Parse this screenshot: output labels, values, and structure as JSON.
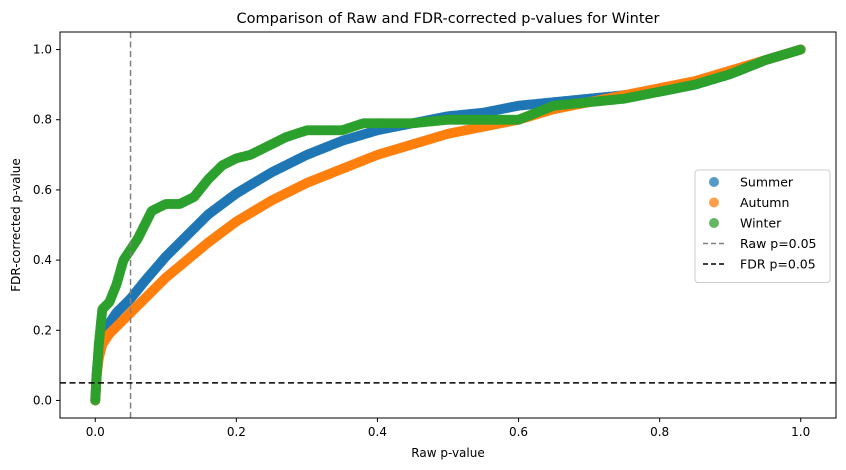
{
  "chart_data": {
    "type": "scatter",
    "title": "Comparison of Raw and FDR-corrected p-values for Winter",
    "xlabel": "Raw p-value",
    "ylabel": "FDR-corrected p-value",
    "xlim": [
      -0.05,
      1.05
    ],
    "ylim": [
      -0.05,
      1.05
    ],
    "xticks": [
      0.0,
      0.2,
      0.4,
      0.6,
      0.8,
      1.0
    ],
    "xtick_labels": [
      "0.0",
      "0.2",
      "0.4",
      "0.6",
      "0.8",
      "1.0"
    ],
    "yticks": [
      0.0,
      0.2,
      0.4,
      0.6,
      0.8,
      1.0
    ],
    "ytick_labels": [
      "0.0",
      "0.2",
      "0.4",
      "0.6",
      "0.8",
      "1.0"
    ],
    "grid": false,
    "legend_position": "center-right",
    "series": [
      {
        "name": "Summer",
        "color": "#1f77b4",
        "points": [
          [
            0.0,
            0.0
          ],
          [
            0.002,
            0.08
          ],
          [
            0.005,
            0.14
          ],
          [
            0.01,
            0.18
          ],
          [
            0.02,
            0.22
          ],
          [
            0.03,
            0.25
          ],
          [
            0.05,
            0.29
          ],
          [
            0.07,
            0.34
          ],
          [
            0.1,
            0.41
          ],
          [
            0.13,
            0.47
          ],
          [
            0.16,
            0.53
          ],
          [
            0.2,
            0.59
          ],
          [
            0.25,
            0.65
          ],
          [
            0.3,
            0.7
          ],
          [
            0.35,
            0.74
          ],
          [
            0.4,
            0.77
          ],
          [
            0.45,
            0.79
          ],
          [
            0.5,
            0.81
          ],
          [
            0.55,
            0.82
          ],
          [
            0.6,
            0.84
          ],
          [
            0.65,
            0.85
          ],
          [
            0.7,
            0.86
          ],
          [
            0.75,
            0.87
          ],
          [
            0.8,
            0.88
          ],
          [
            0.85,
            0.9
          ],
          [
            0.9,
            0.93
          ],
          [
            0.95,
            0.97
          ],
          [
            1.0,
            1.0
          ]
        ]
      },
      {
        "name": "Autumn",
        "color": "#ff7f0e",
        "points": [
          [
            0.0,
            0.0
          ],
          [
            0.002,
            0.07
          ],
          [
            0.005,
            0.12
          ],
          [
            0.01,
            0.16
          ],
          [
            0.02,
            0.19
          ],
          [
            0.03,
            0.21
          ],
          [
            0.05,
            0.25
          ],
          [
            0.07,
            0.29
          ],
          [
            0.1,
            0.35
          ],
          [
            0.13,
            0.4
          ],
          [
            0.16,
            0.45
          ],
          [
            0.2,
            0.51
          ],
          [
            0.25,
            0.57
          ],
          [
            0.3,
            0.62
          ],
          [
            0.35,
            0.66
          ],
          [
            0.4,
            0.7
          ],
          [
            0.45,
            0.73
          ],
          [
            0.5,
            0.76
          ],
          [
            0.55,
            0.78
          ],
          [
            0.6,
            0.8
          ],
          [
            0.65,
            0.83
          ],
          [
            0.7,
            0.85
          ],
          [
            0.75,
            0.87
          ],
          [
            0.8,
            0.89
          ],
          [
            0.85,
            0.91
          ],
          [
            0.9,
            0.94
          ],
          [
            0.95,
            0.97
          ],
          [
            1.0,
            1.0
          ]
        ]
      },
      {
        "name": "Winter",
        "color": "#2ca02c",
        "points": [
          [
            0.0,
            0.0
          ],
          [
            0.002,
            0.07
          ],
          [
            0.005,
            0.16
          ],
          [
            0.01,
            0.26
          ],
          [
            0.02,
            0.28
          ],
          [
            0.03,
            0.33
          ],
          [
            0.04,
            0.4
          ],
          [
            0.05,
            0.43
          ],
          [
            0.06,
            0.46
          ],
          [
            0.07,
            0.5
          ],
          [
            0.08,
            0.54
          ],
          [
            0.1,
            0.56
          ],
          [
            0.12,
            0.56
          ],
          [
            0.14,
            0.58
          ],
          [
            0.16,
            0.63
          ],
          [
            0.18,
            0.67
          ],
          [
            0.2,
            0.69
          ],
          [
            0.22,
            0.7
          ],
          [
            0.24,
            0.72
          ],
          [
            0.27,
            0.75
          ],
          [
            0.3,
            0.77
          ],
          [
            0.35,
            0.77
          ],
          [
            0.38,
            0.79
          ],
          [
            0.45,
            0.79
          ],
          [
            0.5,
            0.8
          ],
          [
            0.55,
            0.8
          ],
          [
            0.6,
            0.8
          ],
          [
            0.65,
            0.84
          ],
          [
            0.7,
            0.85
          ],
          [
            0.75,
            0.86
          ],
          [
            0.8,
            0.88
          ],
          [
            0.85,
            0.9
          ],
          [
            0.9,
            0.93
          ],
          [
            0.95,
            0.97
          ],
          [
            1.0,
            1.0
          ]
        ]
      }
    ],
    "reference_lines": [
      {
        "name": "Raw p=0.05",
        "orientation": "vertical",
        "value": 0.05,
        "color": "#808080",
        "style": "dashed"
      },
      {
        "name": "FDR p=0.05",
        "orientation": "horizontal",
        "value": 0.05,
        "color": "#000000",
        "style": "dashed"
      }
    ]
  }
}
